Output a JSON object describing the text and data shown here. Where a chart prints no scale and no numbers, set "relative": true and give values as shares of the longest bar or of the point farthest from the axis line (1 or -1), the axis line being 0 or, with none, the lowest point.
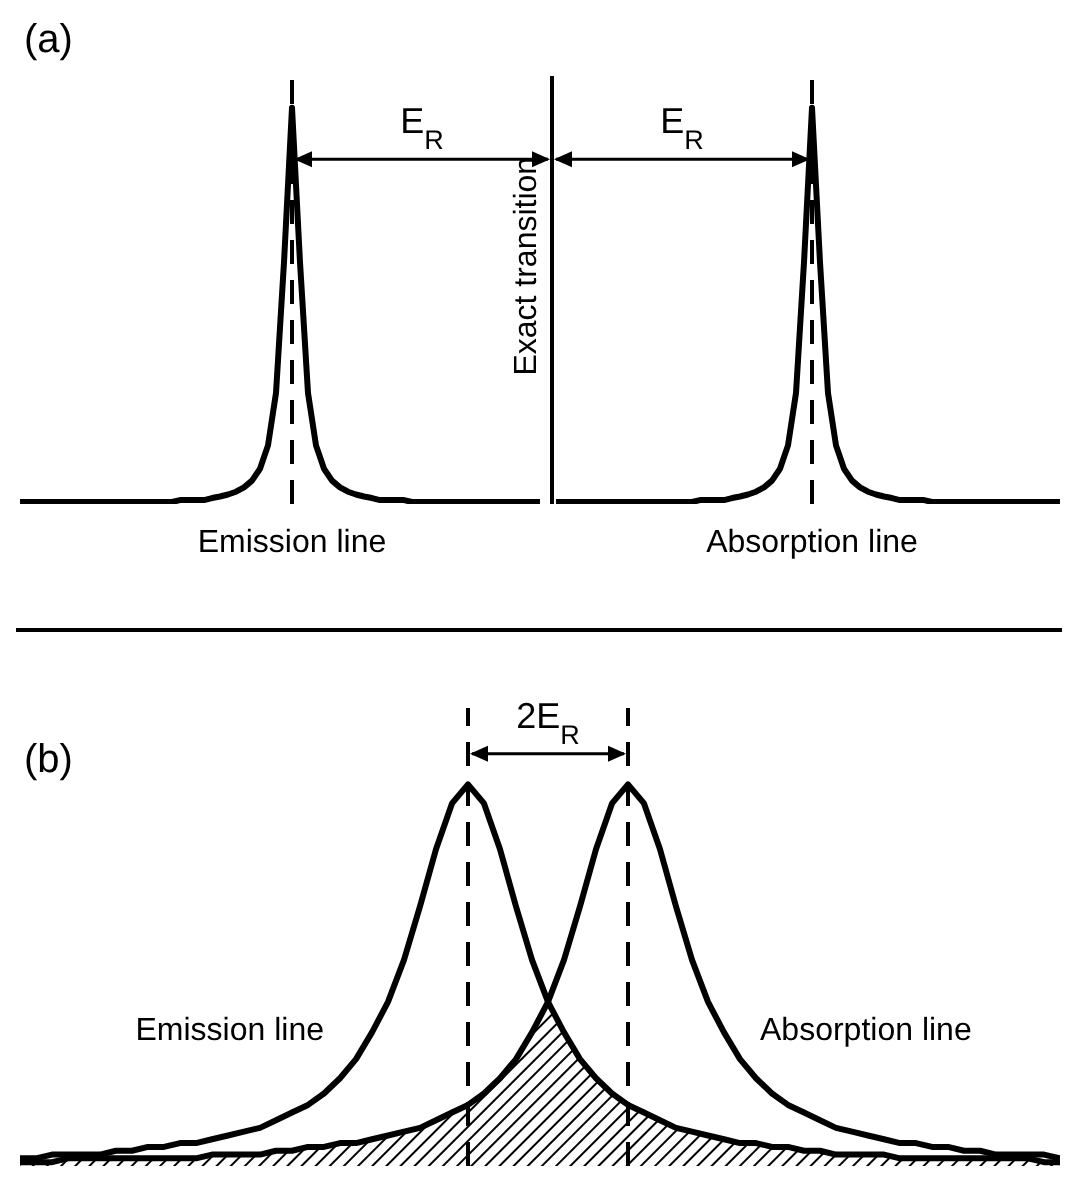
{
  "chart_data": [
    {
      "type": "line",
      "title": "(a)",
      "relative": true,
      "marker": "none",
      "line_style": "solid",
      "categories": [
        null,
        null,
        null,
        null,
        null,
        null,
        null,
        null,
        null,
        null,
        null,
        null,
        null,
        null,
        null,
        null,
        null,
        null,
        null,
        null,
        null,
        null,
        null,
        null,
        null,
        null,
        null,
        null,
        null,
        null,
        null,
        null,
        null,
        null,
        null,
        null,
        null,
        null,
        null,
        null,
        null,
        null,
        null,
        null,
        null,
        null,
        null,
        null,
        null,
        null,
        null,
        null,
        null,
        null,
        null,
        null,
        null,
        null,
        null,
        null,
        null,
        null,
        null,
        null,
        null,
        null,
        null,
        null,
        null,
        null,
        null,
        null,
        null,
        null,
        null,
        null,
        null,
        null,
        null,
        null,
        null,
        null,
        null,
        null,
        null,
        null,
        null,
        null,
        null,
        null,
        null,
        null,
        null,
        null,
        null,
        null,
        null,
        null,
        null,
        null,
        null,
        null,
        null,
        null,
        null,
        null,
        null,
        null,
        null,
        null,
        null,
        null,
        null,
        null,
        null,
        null,
        null,
        null,
        null,
        null,
        null,
        null,
        null,
        null,
        null,
        null,
        null,
        null,
        null,
        null,
        null
      ],
      "series": [
        {
          "name": "Emission line",
          "color": "#000000",
          "values": [
            0.005,
            0.005,
            0.005,
            0.005,
            0.005,
            0.005,
            0.005,
            0.005,
            0.005,
            0.005,
            0.005,
            0.005,
            0.005,
            0.005,
            0.005,
            0.005,
            0.005,
            0.005,
            0.005,
            0.005,
            0.01,
            0.01,
            0.01,
            0.01,
            0.015,
            0.019,
            0.024,
            0.031,
            0.042,
            0.059,
            0.089,
            0.148,
            0.28,
            0.61,
            1,
            0.61,
            0.28,
            0.148,
            0.089,
            0.059,
            0.042,
            0.031,
            0.024,
            0.019,
            0.015,
            0.01,
            0.01,
            0.01,
            0.01,
            0.005,
            0.005,
            0.005,
            0.005,
            0.005,
            0.005,
            0.005,
            0.005,
            0.005,
            0.005,
            0.005,
            0.005,
            0.005,
            0.005,
            0.005,
            0.005,
            0.005,
            null,
            null,
            null,
            null,
            null,
            null,
            null,
            null,
            null,
            null,
            null,
            null,
            null,
            null,
            null,
            null,
            null,
            null,
            null,
            null,
            null,
            null,
            null,
            null,
            null,
            null,
            null,
            null,
            null,
            null,
            null,
            null,
            null,
            null,
            null,
            null,
            null,
            null,
            null,
            null,
            null,
            null,
            null,
            null,
            null,
            null,
            null,
            null,
            null,
            null,
            null,
            null,
            null,
            null,
            null,
            null,
            null,
            null,
            null,
            null,
            null,
            null,
            null,
            null,
            null
          ]
        },
        {
          "name": "Absorption line",
          "color": "#000000",
          "values": [
            null,
            null,
            null,
            null,
            null,
            null,
            null,
            null,
            null,
            null,
            null,
            null,
            null,
            null,
            null,
            null,
            null,
            null,
            null,
            null,
            null,
            null,
            null,
            null,
            null,
            null,
            null,
            null,
            null,
            null,
            null,
            null,
            null,
            null,
            null,
            null,
            null,
            null,
            null,
            null,
            null,
            null,
            null,
            null,
            null,
            null,
            null,
            null,
            null,
            null,
            null,
            null,
            null,
            null,
            null,
            null,
            null,
            null,
            null,
            null,
            null,
            null,
            null,
            null,
            null,
            null,
            null,
            0.005,
            0.005,
            0.005,
            0.005,
            0.005,
            0.005,
            0.005,
            0.005,
            0.005,
            0.005,
            0.005,
            0.005,
            0.005,
            0.005,
            0.005,
            0.005,
            0.005,
            0.005,
            0.01,
            0.01,
            0.01,
            0.01,
            0.015,
            0.019,
            0.024,
            0.031,
            0.042,
            0.059,
            0.089,
            0.148,
            0.28,
            0.61,
            1,
            0.61,
            0.28,
            0.148,
            0.089,
            0.059,
            0.042,
            0.031,
            0.024,
            0.019,
            0.015,
            0.01,
            0.01,
            0.01,
            0.01,
            0.005,
            0.005,
            0.005,
            0.005,
            0.005,
            0.005,
            0.005,
            0.005,
            0.005,
            0.005,
            0.005,
            0.005,
            0.005,
            0.005,
            0.005,
            0.005,
            0.005
          ]
        }
      ],
      "annotations": [
        "Exact transition",
        "E$_{R}$",
        "E$_{R}$"
      ]
    },
    {
      "type": "line",
      "title": "(b)",
      "relative": true,
      "marker": "none",
      "line_style": "solid",
      "categories": [
        null,
        null,
        null,
        null,
        null,
        null,
        null,
        null,
        null,
        null,
        null,
        null,
        null,
        null,
        null,
        null,
        null,
        null,
        null,
        null,
        null,
        null,
        null,
        null,
        null,
        null,
        null,
        null,
        null,
        null,
        null,
        null,
        null,
        null,
        null,
        null,
        null,
        null,
        null,
        null,
        null,
        null,
        null,
        null,
        null,
        null,
        null,
        null,
        null,
        null,
        null,
        null,
        null,
        null,
        null,
        null,
        null,
        null,
        null,
        null,
        null,
        null,
        null,
        null,
        null,
        null
      ],
      "series": [
        {
          "name": "Emission line",
          "color": "#000000",
          "values": [
            0.02,
            0.02,
            0.03,
            0.03,
            0.03,
            0.03,
            0.04,
            0.04,
            0.05,
            0.05,
            0.06,
            0.06,
            0.07,
            0.08,
            0.09,
            0.1,
            0.12,
            0.14,
            0.16,
            0.19,
            0.23,
            0.28,
            0.35,
            0.43,
            0.54,
            0.68,
            0.83,
            0.95,
            1,
            0.95,
            0.83,
            0.68,
            0.54,
            0.43,
            0.35,
            0.28,
            0.23,
            0.19,
            0.16,
            0.14,
            0.12,
            0.1,
            0.09,
            0.08,
            0.07,
            0.06,
            0.06,
            0.05,
            0.05,
            0.04,
            0.04,
            0.03,
            0.03,
            0.03,
            0.03,
            0.02,
            0.02,
            0.02,
            0.02,
            0.02,
            0.02,
            0.02,
            0.02,
            0.02,
            0.01,
            0.01
          ]
        },
        {
          "name": "Absorption line",
          "color": "#000000",
          "values": [
            0.01,
            0.01,
            0.01,
            0.02,
            0.02,
            0.02,
            0.02,
            0.02,
            0.02,
            0.02,
            0.02,
            0.02,
            0.03,
            0.03,
            0.03,
            0.03,
            0.04,
            0.04,
            0.05,
            0.05,
            0.06,
            0.06,
            0.07,
            0.08,
            0.09,
            0.1,
            0.12,
            0.14,
            0.16,
            0.19,
            0.23,
            0.28,
            0.35,
            0.43,
            0.54,
            0.68,
            0.83,
            0.95,
            1,
            0.95,
            0.83,
            0.68,
            0.54,
            0.43,
            0.35,
            0.28,
            0.23,
            0.19,
            0.16,
            0.14,
            0.12,
            0.1,
            0.09,
            0.08,
            0.07,
            0.06,
            0.06,
            0.05,
            0.05,
            0.04,
            0.04,
            0.03,
            0.03,
            0.03,
            0.03,
            0.02
          ]
        },
        {
          "type": "area",
          "color": "#000000",
          "values": [
            0.01,
            0.01,
            0.01,
            0.02,
            0.02,
            0.02,
            0.02,
            0.02,
            0.02,
            0.02,
            0.02,
            0.02,
            0.03,
            0.03,
            0.03,
            0.03,
            0.04,
            0.04,
            0.05,
            0.05,
            0.06,
            0.06,
            0.07,
            0.08,
            0.09,
            0.1,
            0.12,
            0.14,
            0.16,
            0.19,
            0.23,
            0.28,
            0.35,
            0.43,
            0.35,
            0.28,
            0.23,
            0.19,
            0.16,
            0.14,
            0.12,
            0.1,
            0.09,
            0.08,
            0.07,
            0.06,
            0.06,
            0.05,
            0.05,
            0.04,
            0.04,
            0.03,
            0.03,
            0.03,
            0.03,
            0.02,
            0.02,
            0.02,
            0.02,
            0.02,
            0.02,
            0.02,
            0.02,
            0.02,
            0.01,
            0.01
          ]
        }
      ],
      "annotations": [
        "2E$_{R}$"
      ]
    }
  ]
}
